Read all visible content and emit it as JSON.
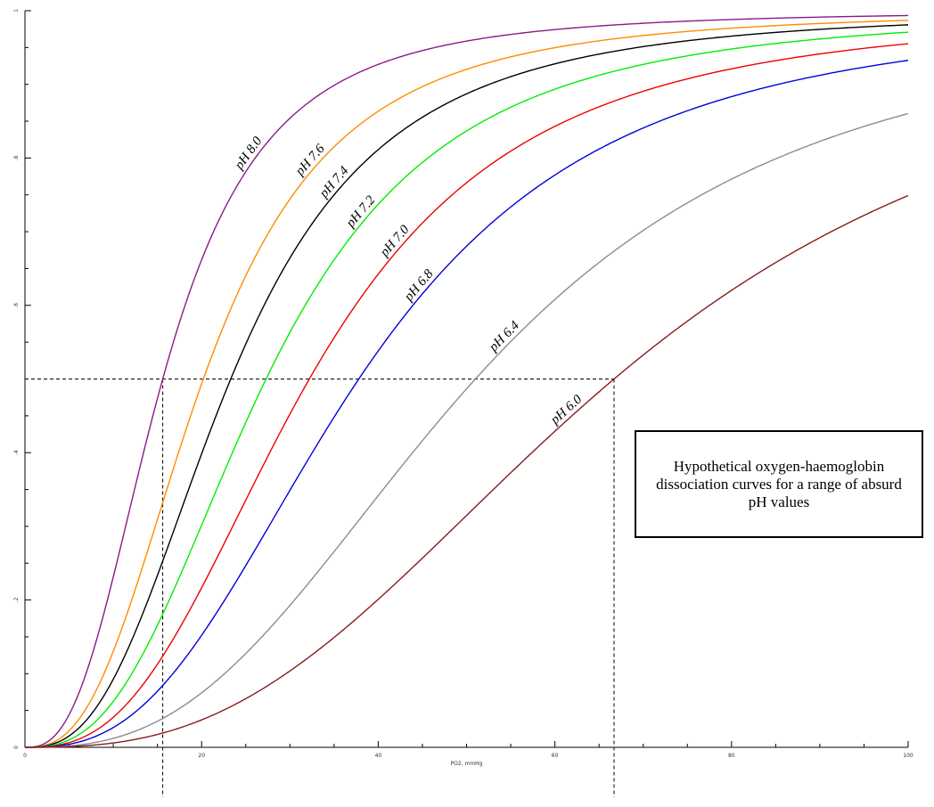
{
  "chart_data": {
    "type": "line",
    "annotation": "Hypothetical oxygen-haemoglobin dissociation curves for a range of absurd pH values",
    "xlabel": "PO2, mmHg",
    "ylabel": "",
    "xlim": [
      0,
      100
    ],
    "ylim": [
      0,
      1
    ],
    "x_ticks": [
      "0",
      "20",
      "40",
      "60",
      "80",
      "100"
    ],
    "y_ticks": [
      "0",
      ".2",
      ".4",
      ".6",
      ".8",
      "1"
    ],
    "grid": false,
    "reference": {
      "y": 0.5,
      "x_left": 15.6,
      "x_right": 66.7
    },
    "series": [
      {
        "name": "pH 8.0",
        "color": "#8b1a8b",
        "p50": 15.6,
        "n": 2.7
      },
      {
        "name": "pH 7.6",
        "color": "#ff8c00",
        "p50": 20.2,
        "n": 2.7
      },
      {
        "name": "pH 7.4",
        "color": "#000000",
        "p50": 23.3,
        "n": 2.7
      },
      {
        "name": "pH 7.2",
        "color": "#00ee00",
        "p50": 27.3,
        "n": 2.7
      },
      {
        "name": "pH 7.0",
        "color": "#ee0000",
        "p50": 32.2,
        "n": 2.7
      },
      {
        "name": "pH 6.8",
        "color": "#0000dd",
        "p50": 37.8,
        "n": 2.7
      },
      {
        "name": "pH 6.4",
        "color": "#8c8c8c",
        "p50": 51.0,
        "n": 2.7
      },
      {
        "name": "pH 6.0",
        "color": "#8b1a1a",
        "p50": 66.7,
        "n": 2.7
      }
    ]
  }
}
